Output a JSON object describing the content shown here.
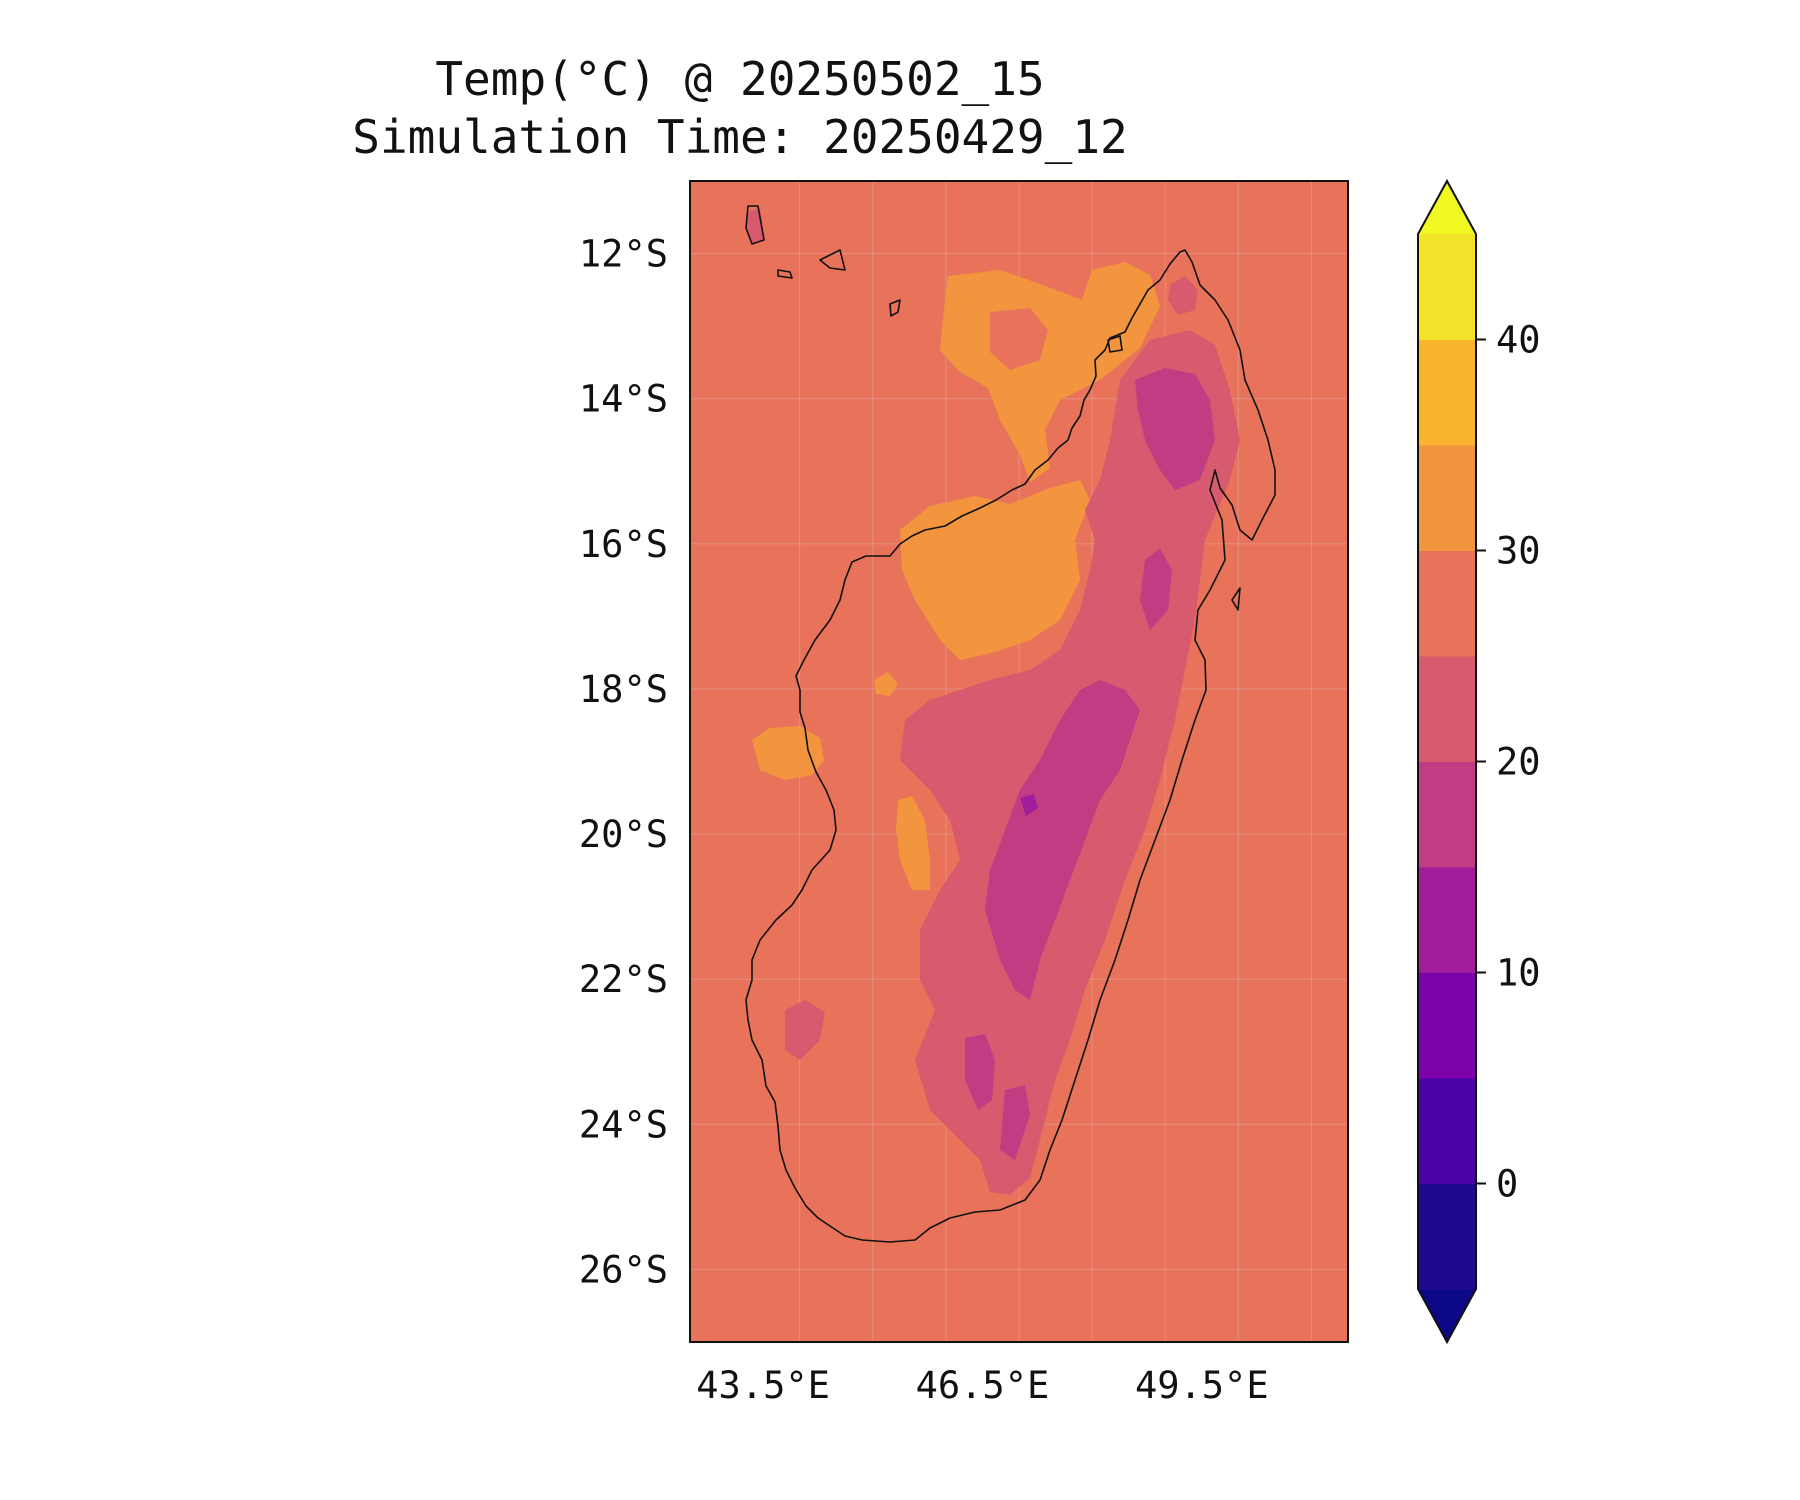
{
  "title": {
    "line1": "Temp(°C) @ 20250502_15",
    "line2": "Simulation Time: 20250429_12"
  },
  "map": {
    "extent": {
      "lon_min": 42.5,
      "lon_max": 51.5,
      "lat_min": -27,
      "lat_max": -11
    },
    "ocean_color": "#e8735a",
    "coastline_color": "#111111",
    "gridlines": true,
    "y_ticks": [
      {
        "label": "12°S",
        "lat": -12
      },
      {
        "label": "14°S",
        "lat": -14
      },
      {
        "label": "16°S",
        "lat": -16
      },
      {
        "label": "18°S",
        "lat": -18
      },
      {
        "label": "20°S",
        "lat": -20
      },
      {
        "label": "22°S",
        "lat": -22
      },
      {
        "label": "24°S",
        "lat": -24
      },
      {
        "label": "26°S",
        "lat": -26
      }
    ],
    "x_ticks": [
      {
        "label": "43.5°E",
        "lon": 43.5
      },
      {
        "label": "46.5°E",
        "lon": 46.5
      },
      {
        "label": "49.5°E",
        "lon": 49.5
      }
    ]
  },
  "colorbar": {
    "levels": [
      -5,
      0,
      5,
      10,
      15,
      20,
      25,
      30,
      35,
      40
    ],
    "colors": [
      "#20088f",
      "#4a03a4",
      "#7b02a8",
      "#a21d9a",
      "#c13c83",
      "#d75a6f",
      "#e8735a",
      "#f3953f",
      "#fbb42f",
      "#f2e22a"
    ],
    "under_color": "#0d0887",
    "over_color": "#f0f921",
    "extend": "both",
    "tick_labels": [
      "0",
      "10",
      "20",
      "30",
      "40"
    ],
    "tick_values": [
      0,
      10,
      20,
      30,
      40
    ]
  }
}
